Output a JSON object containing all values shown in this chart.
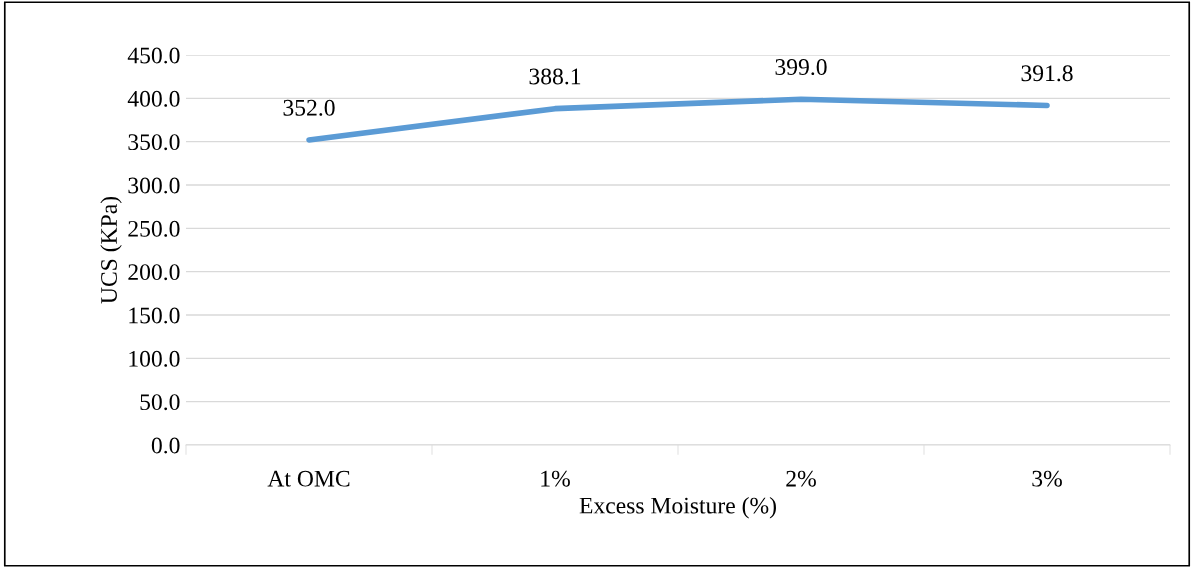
{
  "chart_data": {
    "type": "line",
    "xlabel": "Excess Moisture (%)",
    "ylabel": "UCS (KPa)",
    "categories": [
      "At OMC",
      "1%",
      "2%",
      "3%"
    ],
    "values": [
      352.0,
      388.1,
      399.0,
      391.8
    ],
    "value_labels": [
      "352.0",
      "388.1",
      "399.0",
      "391.8"
    ],
    "color": "#5b9bd5",
    "ylim": [
      0,
      450
    ],
    "yticks": [
      {
        "value": 0,
        "label": "0.0"
      },
      {
        "value": 50,
        "label": "50.0"
      },
      {
        "value": 100,
        "label": "100.0"
      },
      {
        "value": 150,
        "label": "150.0"
      },
      {
        "value": 200,
        "label": "200.0"
      },
      {
        "value": 250,
        "label": "250.0"
      },
      {
        "value": 300,
        "label": "300.0"
      },
      {
        "value": 350,
        "label": "350.0"
      },
      {
        "value": 400,
        "label": "400.0"
      },
      {
        "value": 450,
        "label": "450.0"
      }
    ],
    "grid": "y",
    "marker": "none",
    "line_style": "solid"
  }
}
